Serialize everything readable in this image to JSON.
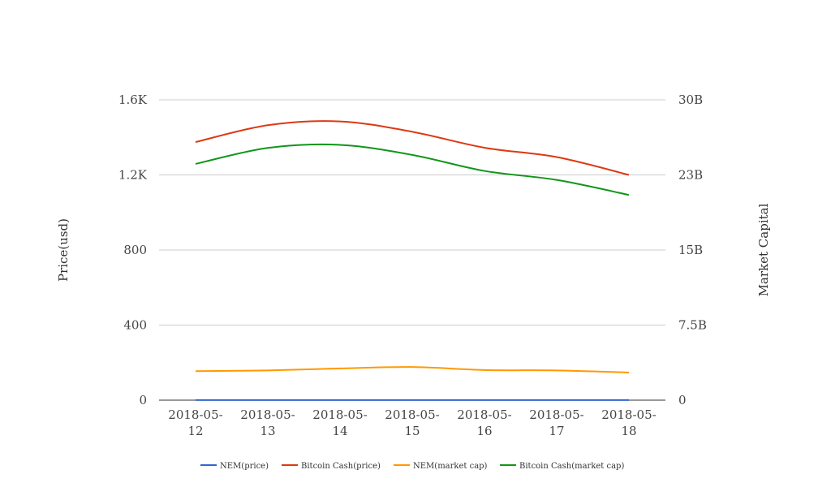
{
  "chart_data": {
    "type": "line",
    "title": "",
    "x_tick_labels": [
      [
        "2018-05-",
        "12"
      ],
      [
        "2018-05-",
        "13"
      ],
      [
        "2018-05-",
        "14"
      ],
      [
        "2018-05-",
        "15"
      ],
      [
        "2018-05-",
        "16"
      ],
      [
        "2018-05-",
        "17"
      ],
      [
        "2018-05-",
        "18"
      ]
    ],
    "categories": [
      "2018-05-12",
      "2018-05-13",
      "2018-05-14",
      "2018-05-15",
      "2018-05-16",
      "2018-05-17",
      "2018-05-18"
    ],
    "y_left": {
      "label": "Price(usd)",
      "ylim": [
        0,
        1600
      ],
      "ticks": [
        0,
        400,
        800,
        1200,
        1600
      ],
      "tick_labels": [
        "0",
        "400",
        "800",
        "1.2K",
        "1.6K"
      ]
    },
    "y_right": {
      "label": "Market Capital",
      "ylim": [
        0,
        30000000000
      ],
      "ticks": [
        0,
        7500000000,
        15000000000,
        22500000000,
        30000000000
      ],
      "tick_labels": [
        "0",
        "7.5B",
        "15B",
        "23B",
        "30B"
      ]
    },
    "grid": true,
    "legend_position": "bottom",
    "series": [
      {
        "name": "NEM(price)",
        "axis": "left",
        "color": "#3366cc",
        "values": [
          0.36,
          0.36,
          0.37,
          0.37,
          0.35,
          0.35,
          0.34
        ]
      },
      {
        "name": "Bitcoin Cash(price)",
        "axis": "left",
        "color": "#dc3912",
        "values": [
          1375,
          1465,
          1485,
          1430,
          1345,
          1295,
          1200
        ]
      },
      {
        "name": "NEM(market cap)",
        "axis": "right",
        "color": "#ff9900",
        "values": [
          2900000000,
          2970000000,
          3170000000,
          3310000000,
          3010000000,
          2970000000,
          2760000000
        ]
      },
      {
        "name": "Bitcoin Cash(market cap)",
        "axis": "right",
        "color": "#109618",
        "values": [
          23600000000,
          25200000000,
          25500000000,
          24500000000,
          22900000000,
          22000000000,
          20500000000
        ]
      }
    ]
  }
}
